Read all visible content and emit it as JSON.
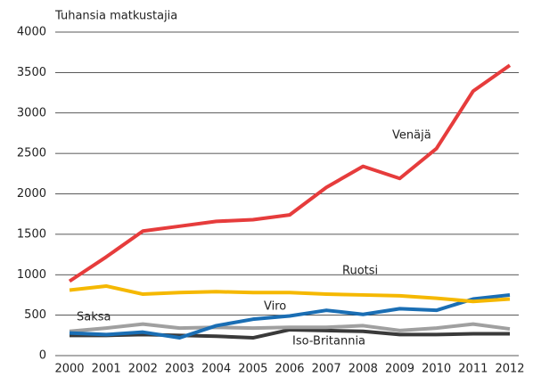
{
  "chart_data": {
    "type": "line",
    "y_label": "Tuhansia matkustajia",
    "categories": [
      "2000",
      "2001",
      "2002",
      "2003",
      "2004",
      "2005",
      "2006",
      "2007",
      "2008",
      "2009",
      "2010",
      "2011",
      "2012"
    ],
    "series": [
      {
        "name": "Venäjä",
        "color": "#e63c3c",
        "values": [
          920,
          1220,
          1540,
          1600,
          1660,
          1680,
          1740,
          2080,
          2340,
          2190,
          2560,
          3270,
          3590
        ]
      },
      {
        "name": "Ruotsi",
        "color": "#f5b800",
        "values": [
          810,
          860,
          760,
          780,
          790,
          780,
          780,
          760,
          750,
          740,
          710,
          670,
          700
        ]
      },
      {
        "name": "Viro",
        "color": "#1a6eb4",
        "values": [
          280,
          260,
          290,
          220,
          370,
          450,
          490,
          560,
          510,
          580,
          560,
          700,
          750
        ]
      },
      {
        "name": "Saksa",
        "color": "#a0a0a0",
        "values": [
          300,
          340,
          390,
          340,
          350,
          340,
          350,
          350,
          370,
          310,
          340,
          390,
          330
        ]
      },
      {
        "name": "Iso-Britannia",
        "color": "#3a3a3a",
        "values": [
          250,
          250,
          260,
          250,
          240,
          220,
          320,
          310,
          300,
          260,
          260,
          270,
          270
        ]
      }
    ],
    "ylim": [
      0,
      4000
    ],
    "yticks": [
      0,
      500,
      1000,
      1500,
      2000,
      2500,
      3000,
      3500,
      4000
    ],
    "grid": true
  }
}
